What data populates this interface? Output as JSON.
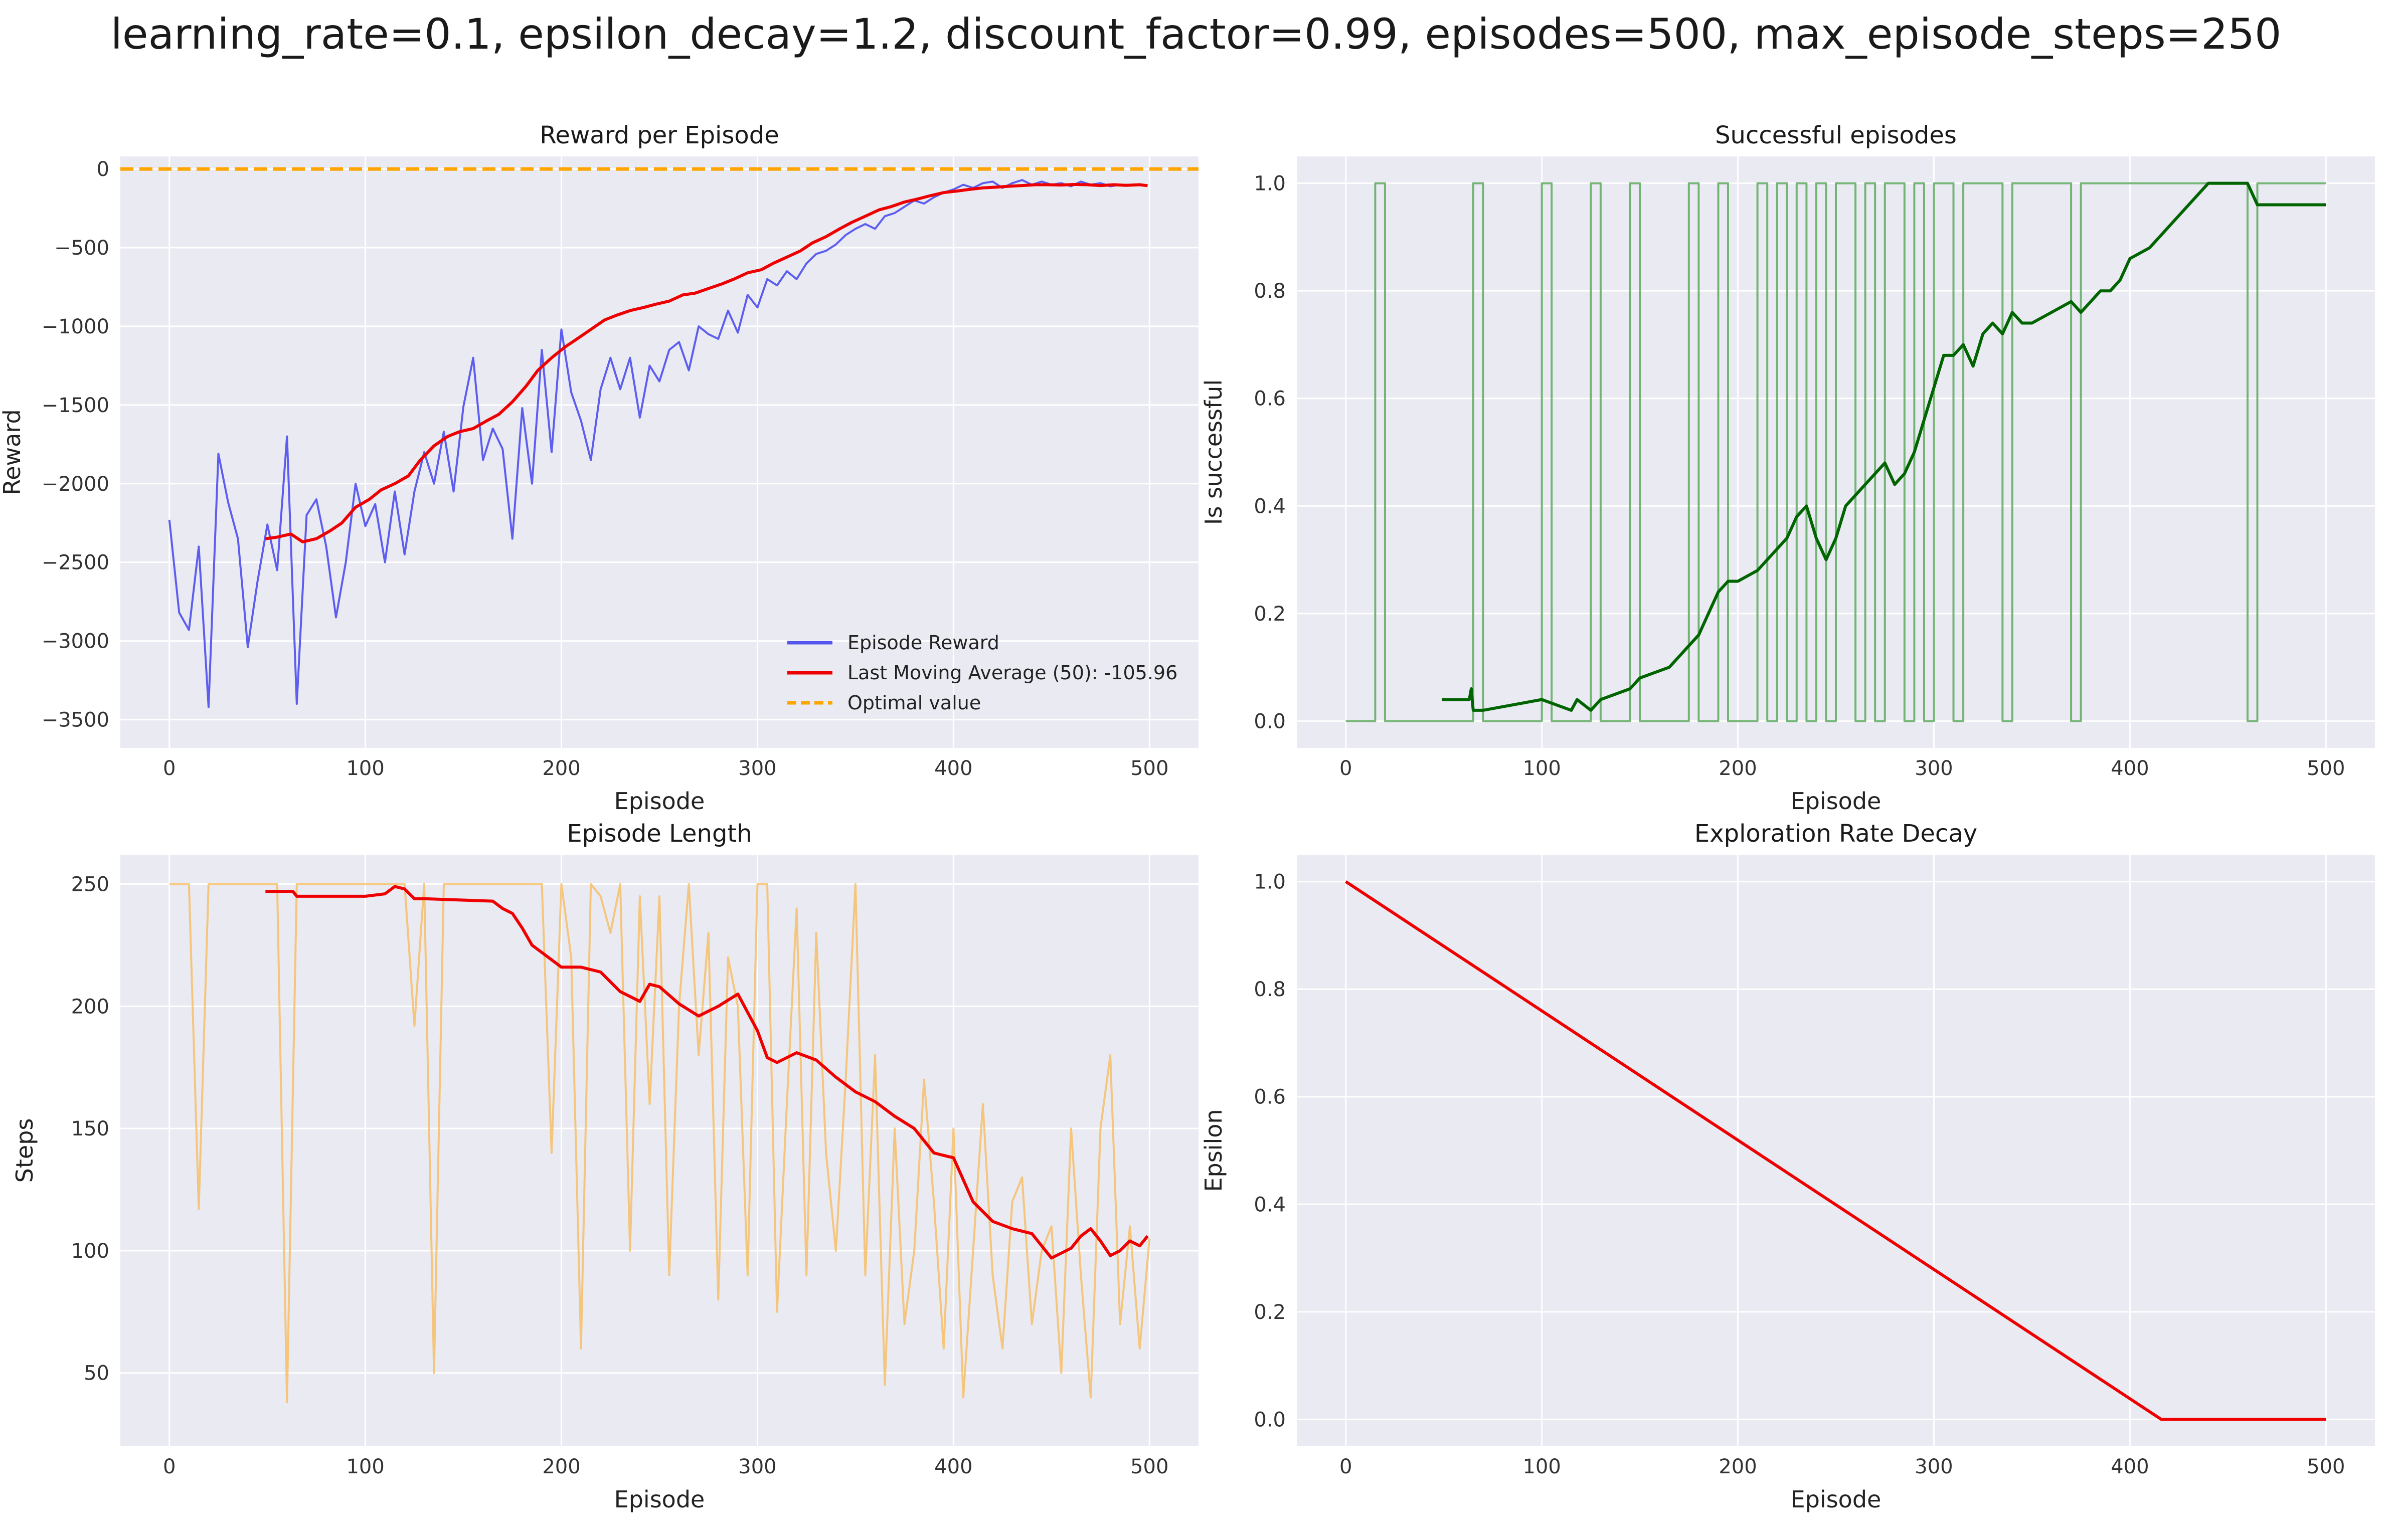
{
  "figure": {
    "suptitle": "learning_rate=0.1, epsilon_decay=1.2, discount_factor=0.99, episodes=500, max_episode_steps=250"
  },
  "chart_data": [
    {
      "type": "line",
      "title": "Reward per Episode",
      "xlabel": "Episode",
      "ylabel": "Reward",
      "xlim": [
        -25,
        525
      ],
      "ylim": [
        -3680,
        80
      ],
      "xticks": [
        0,
        100,
        200,
        300,
        400,
        500
      ],
      "yticks": [
        0,
        -500,
        -1000,
        -1500,
        -2000,
        -2500,
        -3000,
        -3500
      ],
      "ytick_labels": [
        "0",
        "−500",
        "−1000",
        "−1500",
        "−2000",
        "−2500",
        "−3000",
        "−3500"
      ],
      "grid": true,
      "legend": {
        "placement": "lower-right",
        "entries": [
          "Episode Reward",
          "Last Moving Average (50): -105.96",
          "Optimal value"
        ]
      },
      "series": [
        {
          "name": "Episode Reward",
          "color": "#5555ee",
          "opacity": 0.95,
          "width": 4,
          "x_start": 0,
          "x_step": 5,
          "values": [
            -2230,
            -2820,
            -2930,
            -2400,
            -3420,
            -1810,
            -2120,
            -2350,
            -3040,
            -2620,
            -2260,
            -2550,
            -1700,
            -3400,
            -2200,
            -2100,
            -2400,
            -2850,
            -2500,
            -2000,
            -2270,
            -2130,
            -2500,
            -2050,
            -2450,
            -2050,
            -1800,
            -2000,
            -1670,
            -2050,
            -1510,
            -1200,
            -1850,
            -1650,
            -1780,
            -2350,
            -1520,
            -2000,
            -1150,
            -1800,
            -1020,
            -1420,
            -1600,
            -1850,
            -1400,
            -1200,
            -1400,
            -1200,
            -1580,
            -1250,
            -1350,
            -1150,
            -1100,
            -1280,
            -1000,
            -1050,
            -1080,
            -900,
            -1040,
            -800,
            -880,
            -700,
            -740,
            -650,
            -700,
            -600,
            -540,
            -520,
            -480,
            -420,
            -380,
            -350,
            -380,
            -300,
            -280,
            -240,
            -200,
            -220,
            -180,
            -150,
            -130,
            -100,
            -120,
            -90,
            -80,
            -120,
            -90,
            -70,
            -100,
            -80,
            -100,
            -90,
            -110,
            -80,
            -100,
            -90,
            -110,
            -100,
            -100,
            -100
          ]
        },
        {
          "name": "Last Moving Average (50): -105.96",
          "color": "#ee0000",
          "opacity": 1,
          "width": 6,
          "x": [
            49,
            55,
            62,
            68,
            75,
            82,
            88,
            95,
            102,
            108,
            115,
            122,
            128,
            135,
            142,
            148,
            155,
            162,
            168,
            175,
            182,
            188,
            195,
            202,
            208,
            215,
            222,
            228,
            235,
            242,
            248,
            255,
            262,
            268,
            275,
            282,
            288,
            295,
            302,
            308,
            315,
            322,
            328,
            335,
            342,
            348,
            355,
            362,
            368,
            375,
            382,
            388,
            395,
            402,
            408,
            415,
            422,
            428,
            435,
            442,
            448,
            455,
            462,
            468,
            475,
            482,
            488,
            495,
            499
          ],
          "values": [
            -2350,
            -2340,
            -2320,
            -2370,
            -2350,
            -2300,
            -2250,
            -2150,
            -2100,
            -2040,
            -2000,
            -1950,
            -1850,
            -1760,
            -1700,
            -1670,
            -1650,
            -1600,
            -1560,
            -1480,
            -1380,
            -1280,
            -1200,
            -1130,
            -1080,
            -1020,
            -960,
            -930,
            -900,
            -880,
            -860,
            -840,
            -800,
            -790,
            -760,
            -730,
            -700,
            -660,
            -640,
            -600,
            -560,
            -520,
            -470,
            -430,
            -380,
            -340,
            -300,
            -260,
            -240,
            -210,
            -190,
            -170,
            -150,
            -140,
            -130,
            -120,
            -115,
            -110,
            -105,
            -100,
            -100,
            -102,
            -98,
            -100,
            -105,
            -100,
            -104,
            -100,
            -106
          ]
        }
      ],
      "reference_line": {
        "name": "Optimal value",
        "y": 0,
        "color": "#ffa500",
        "style": "dashed"
      }
    },
    {
      "type": "line",
      "title": "Successful episodes",
      "xlabel": "Episode",
      "ylabel": "Is successful",
      "xlim": [
        -25,
        525
      ],
      "ylim": [
        -0.05,
        1.05
      ],
      "xticks": [
        0,
        100,
        200,
        300,
        400,
        500
      ],
      "yticks": [
        0.0,
        0.2,
        0.4,
        0.6,
        0.8,
        1.0
      ],
      "ytick_labels": [
        "0.0",
        "0.2",
        "0.4",
        "0.6",
        "0.8",
        "1.0"
      ],
      "grid": true,
      "series": [
        {
          "name": "",
          "color": "#55a555",
          "opacity": 0.8,
          "width": 4,
          "kind": "binary",
          "x_start": 0,
          "x_step": 5,
          "values": [
            0,
            0,
            0,
            1,
            0,
            0,
            0,
            0,
            0,
            0,
            0,
            0,
            0,
            1,
            0,
            0,
            0,
            0,
            0,
            0,
            1,
            0,
            0,
            0,
            0,
            1,
            0,
            0,
            0,
            1,
            0,
            0,
            0,
            0,
            0,
            1,
            0,
            0,
            1,
            0,
            0,
            0,
            1,
            0,
            1,
            0,
            1,
            0,
            1,
            0,
            1,
            1,
            0,
            1,
            0,
            1,
            1,
            0,
            1,
            0,
            1,
            1,
            0,
            1,
            1,
            1,
            1,
            0,
            1,
            1,
            1,
            1,
            1,
            1,
            0,
            1,
            1,
            1,
            1,
            1,
            1,
            1,
            1,
            1,
            1,
            1,
            1,
            1,
            1,
            1,
            1,
            1,
            0,
            1,
            1,
            1,
            1,
            1,
            1,
            1,
            1
          ]
        },
        {
          "name": "",
          "color": "#006400",
          "opacity": 1,
          "width": 6,
          "x": [
            49,
            63,
            64,
            65,
            70,
            100,
            115,
            118,
            125,
            130,
            145,
            150,
            165,
            170,
            175,
            180,
            185,
            190,
            195,
            200,
            210,
            215,
            220,
            225,
            230,
            235,
            240,
            245,
            250,
            255,
            260,
            265,
            270,
            275,
            280,
            285,
            290,
            295,
            300,
            305,
            310,
            315,
            320,
            325,
            330,
            335,
            340,
            345,
            350,
            360,
            370,
            375,
            380,
            385,
            390,
            395,
            400,
            410,
            420,
            430,
            440,
            450,
            460,
            465,
            470,
            480,
            500
          ],
          "values": [
            0.04,
            0.04,
            0.06,
            0.02,
            0.02,
            0.04,
            0.02,
            0.04,
            0.02,
            0.04,
            0.06,
            0.08,
            0.1,
            0.12,
            0.14,
            0.16,
            0.2,
            0.24,
            0.26,
            0.26,
            0.28,
            0.3,
            0.32,
            0.34,
            0.38,
            0.4,
            0.34,
            0.3,
            0.34,
            0.4,
            0.42,
            0.44,
            0.46,
            0.48,
            0.44,
            0.46,
            0.5,
            0.56,
            0.62,
            0.68,
            0.68,
            0.7,
            0.66,
            0.72,
            0.74,
            0.72,
            0.76,
            0.74,
            0.74,
            0.76,
            0.78,
            0.76,
            0.78,
            0.8,
            0.8,
            0.82,
            0.86,
            0.88,
            0.92,
            0.96,
            1.0,
            1.0,
            1.0,
            0.96,
            0.96,
            0.96,
            0.96
          ]
        }
      ]
    },
    {
      "type": "line",
      "title": "Episode Length",
      "xlabel": "Episode",
      "ylabel": "Steps",
      "xlim": [
        -25,
        525
      ],
      "ylim": [
        20,
        262
      ],
      "xticks": [
        0,
        100,
        200,
        300,
        400,
        500
      ],
      "yticks": [
        50,
        100,
        150,
        200,
        250
      ],
      "ytick_labels": [
        "50",
        "100",
        "150",
        "200",
        "250"
      ],
      "grid": true,
      "series": [
        {
          "name": "",
          "color": "#f7b955",
          "opacity": 0.75,
          "width": 4,
          "x_start": 0,
          "x_step": 5,
          "values": [
            250,
            250,
            250,
            117,
            250,
            250,
            250,
            250,
            250,
            250,
            250,
            250,
            38,
            250,
            250,
            250,
            250,
            250,
            250,
            250,
            250,
            250,
            250,
            250,
            250,
            192,
            250,
            50,
            250,
            250,
            250,
            250,
            250,
            250,
            250,
            250,
            250,
            250,
            250,
            140,
            250,
            220,
            60,
            250,
            245,
            230,
            250,
            100,
            245,
            160,
            245,
            90,
            200,
            250,
            180,
            230,
            80,
            220,
            200,
            90,
            250,
            250,
            75,
            160,
            240,
            90,
            230,
            140,
            100,
            170,
            250,
            90,
            180,
            45,
            150,
            70,
            100,
            170,
            120,
            60,
            150,
            40,
            100,
            160,
            90,
            60,
            120,
            130,
            70,
            100,
            110,
            50,
            150,
            90,
            40,
            150,
            180,
            70,
            110,
            60,
            105
          ]
        },
        {
          "name": "",
          "color": "#ee0000",
          "opacity": 1,
          "width": 6,
          "x": [
            49,
            63,
            65,
            100,
            110,
            115,
            120,
            125,
            130,
            165,
            170,
            175,
            180,
            185,
            190,
            200,
            210,
            220,
            230,
            240,
            245,
            250,
            260,
            270,
            280,
            290,
            300,
            305,
            310,
            320,
            330,
            340,
            350,
            360,
            370,
            380,
            390,
            395,
            400,
            410,
            420,
            430,
            440,
            445,
            450,
            460,
            465,
            470,
            475,
            480,
            485,
            490,
            495,
            499
          ],
          "values": [
            247,
            247,
            245,
            245,
            246,
            249,
            248,
            244,
            244,
            243,
            240,
            238,
            232,
            225,
            222,
            216,
            216,
            214,
            206,
            202,
            209,
            208,
            201,
            196,
            200,
            205,
            190,
            179,
            177,
            181,
            178,
            171,
            165,
            161,
            155,
            150,
            140,
            139,
            138,
            120,
            112,
            109,
            107,
            102,
            97,
            101,
            106,
            109,
            104,
            98,
            100,
            104,
            102,
            106
          ]
        }
      ]
    },
    {
      "type": "line",
      "title": "Exploration Rate Decay",
      "xlabel": "Episode",
      "ylabel": "Epsilon",
      "xlim": [
        -25,
        525
      ],
      "ylim": [
        -0.05,
        1.05
      ],
      "xticks": [
        0,
        100,
        200,
        300,
        400,
        500
      ],
      "yticks": [
        0.0,
        0.2,
        0.4,
        0.6,
        0.8,
        1.0
      ],
      "ytick_labels": [
        "0.0",
        "0.2",
        "0.4",
        "0.6",
        "0.8",
        "1.0"
      ],
      "grid": true,
      "series": [
        {
          "name": "",
          "color": "#ee0000",
          "opacity": 1,
          "width": 6,
          "x": [
            0,
            416,
            500
          ],
          "values": [
            1.0,
            0.0,
            0.0
          ]
        }
      ]
    }
  ]
}
